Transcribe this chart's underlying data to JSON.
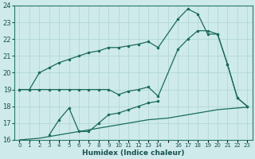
{
  "xlabel": "Humidex (Indice chaleur)",
  "background_color": "#ceeaea",
  "grid_color": "#aed4d4",
  "line_color": "#1a6b5a",
  "ylim": [
    16,
    24
  ],
  "xlim": [
    -0.5,
    23.5
  ],
  "yticks": [
    16,
    17,
    18,
    19,
    20,
    21,
    22,
    23,
    24
  ],
  "xtick_labels": [
    "0",
    "1",
    "2",
    "3",
    "4",
    "5",
    "6",
    "7",
    "8",
    "9",
    "10",
    "11",
    "12",
    "13",
    "14",
    "",
    "16",
    "17",
    "18",
    "19",
    "20",
    "21",
    "22",
    "23"
  ],
  "curve_top_x": [
    0,
    1,
    2,
    3,
    4,
    5,
    6,
    7,
    8,
    9,
    10,
    11,
    12,
    13,
    14,
    16,
    17,
    18,
    19,
    20,
    21,
    22,
    23
  ],
  "curve_top_y": [
    19.0,
    19.0,
    20.0,
    20.3,
    20.6,
    20.8,
    21.0,
    21.2,
    21.3,
    21.5,
    21.5,
    21.6,
    21.7,
    21.85,
    21.5,
    23.2,
    23.8,
    23.5,
    22.3,
    22.3,
    20.5,
    18.5,
    18.0
  ],
  "curve_mid_x": [
    0,
    1,
    2,
    3,
    4,
    5,
    6,
    7,
    8,
    9,
    10,
    11,
    12,
    13,
    14,
    16,
    17,
    18,
    19,
    20,
    21,
    22,
    23
  ],
  "curve_mid_y": [
    19.0,
    19.0,
    19.0,
    19.0,
    19.0,
    19.0,
    19.0,
    19.0,
    19.0,
    19.0,
    18.7,
    18.9,
    19.0,
    19.15,
    18.6,
    21.4,
    22.0,
    22.5,
    22.5,
    22.3,
    20.5,
    18.5,
    18.0
  ],
  "curve_low_x": [
    3,
    4,
    5,
    6,
    7,
    8,
    9,
    10,
    11,
    12,
    13,
    14
  ],
  "curve_low_y": [
    16.3,
    17.2,
    17.9,
    16.5,
    16.5,
    17.0,
    17.5,
    17.6,
    17.8,
    18.0,
    18.2,
    18.3
  ],
  "line_bottom_x": [
    0,
    1,
    2,
    3,
    4,
    5,
    6,
    7,
    8,
    9,
    10,
    11,
    12,
    13,
    14,
    15,
    16,
    17,
    18,
    19,
    20,
    21,
    22,
    23
  ],
  "line_bottom_y": [
    16.0,
    16.05,
    16.1,
    16.2,
    16.3,
    16.4,
    16.5,
    16.6,
    16.7,
    16.8,
    16.9,
    17.0,
    17.1,
    17.2,
    17.25,
    17.3,
    17.4,
    17.5,
    17.6,
    17.7,
    17.8,
    17.85,
    17.9,
    17.95
  ]
}
